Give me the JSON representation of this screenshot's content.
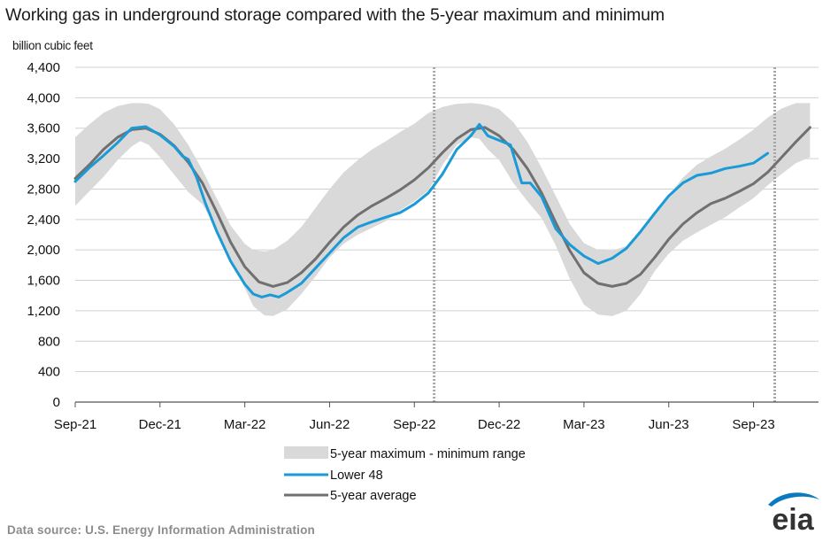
{
  "title": "Working gas in underground  storage compared with the 5-year maximum and minimum",
  "unit_label": "billion cubic feet",
  "source": "Data source:  U.S. Energy Information Administration",
  "logo_text": "eia",
  "colors": {
    "lower48": "#1a9ad6",
    "average": "#707070",
    "range": "#d9d9d9",
    "grid": "#d0d0d0",
    "marker": "#a6a6a6",
    "logo": "#0a7abf"
  },
  "chart_data": {
    "type": "line",
    "title": "Working gas in underground  storage compared with the 5-year maximum and minimum",
    "ylabel": "billion cubic feet",
    "xlabel": "",
    "ylim": [
      0,
      4400
    ],
    "yticks": [
      0,
      400,
      800,
      1200,
      1600,
      2000,
      2400,
      2800,
      3200,
      3600,
      4000,
      4400
    ],
    "ytick_labels": [
      "0",
      "400",
      "800",
      "1,200",
      "1,600",
      "2,000",
      "2,400",
      "2,800",
      "3,200",
      "3,600",
      "4,000",
      "4,400"
    ],
    "x_unit": "months after Sep-21",
    "xlim": [
      0,
      26.3
    ],
    "xticks": [
      0,
      3,
      6,
      9,
      12,
      15,
      18,
      21,
      24
    ],
    "xtick_labels": [
      "Sep-21",
      "Dec-21",
      "Mar-22",
      "Jun-22",
      "Sep-22",
      "Dec-22",
      "Mar-23",
      "Jun-23",
      "Sep-23"
    ],
    "vertical_markers": [
      12.7,
      24.75
    ],
    "grid": true,
    "legend_position": "bottom-center",
    "series": [
      {
        "name": "5-year maximum - minimum range",
        "kind": "band",
        "x": [
          0,
          0.5,
          1,
          1.5,
          2,
          2.3,
          2.6,
          3,
          3.5,
          4,
          4.5,
          5,
          5.5,
          6,
          6.3,
          6.7,
          7,
          7.5,
          8,
          8.5,
          9,
          9.5,
          10,
          10.5,
          11,
          11.5,
          12,
          12.5,
          13,
          13.5,
          14,
          14.3,
          14.6,
          15,
          15.5,
          16,
          16.5,
          17,
          17.5,
          18,
          18.5,
          19,
          19.5,
          20,
          20.5,
          21,
          21.5,
          22,
          22.5,
          23,
          23.5,
          24,
          24.5,
          25,
          25.5,
          26
        ],
        "max": [
          3480,
          3650,
          3800,
          3890,
          3930,
          3930,
          3920,
          3850,
          3650,
          3380,
          3050,
          2680,
          2320,
          2080,
          2000,
          1980,
          2000,
          2120,
          2300,
          2550,
          2800,
          3020,
          3180,
          3320,
          3430,
          3550,
          3660,
          3800,
          3880,
          3920,
          3930,
          3920,
          3900,
          3850,
          3680,
          3420,
          3080,
          2710,
          2340,
          2090,
          2000,
          1990,
          2050,
          2230,
          2480,
          2720,
          2950,
          3120,
          3230,
          3330,
          3450,
          3580,
          3740,
          3860,
          3930,
          3930
        ],
        "min": [
          2580,
          2770,
          2960,
          3180,
          3360,
          3430,
          3380,
          3220,
          2990,
          2760,
          2600,
          2280,
          1880,
          1500,
          1260,
          1140,
          1130,
          1220,
          1420,
          1650,
          1900,
          2080,
          2200,
          2290,
          2380,
          2520,
          2640,
          2780,
          3120,
          3380,
          3480,
          3460,
          3320,
          3180,
          2880,
          2640,
          2420,
          2060,
          1620,
          1280,
          1150,
          1130,
          1200,
          1420,
          1720,
          1950,
          2120,
          2230,
          2330,
          2430,
          2560,
          2680,
          2850,
          3000,
          3140,
          3220
        ]
      },
      {
        "name": "Lower 48",
        "kind": "line",
        "x": [
          0,
          0.5,
          1,
          1.5,
          2,
          2.5,
          3,
          3.5,
          3.8,
          4,
          4.3,
          4.6,
          5,
          5.5,
          6,
          6.3,
          6.6,
          6.9,
          7.2,
          7.5,
          8,
          8.5,
          9,
          9.5,
          10,
          10.5,
          11,
          11.5,
          12,
          12.5,
          13,
          13.5,
          14,
          14.3,
          14.6,
          15,
          15.4,
          15.8,
          16.1,
          16.5,
          17,
          17.5,
          18,
          18.5,
          19,
          19.5,
          20,
          20.5,
          21,
          21.5,
          22,
          22.5,
          23,
          23.5,
          24,
          24.5
        ],
        "values": [
          2900,
          3080,
          3240,
          3410,
          3600,
          3620,
          3510,
          3360,
          3230,
          3190,
          2950,
          2620,
          2250,
          1850,
          1550,
          1420,
          1380,
          1410,
          1380,
          1440,
          1560,
          1760,
          1960,
          2160,
          2300,
          2370,
          2430,
          2490,
          2600,
          2750,
          3000,
          3320,
          3500,
          3650,
          3500,
          3440,
          3380,
          2880,
          2880,
          2700,
          2280,
          2070,
          1920,
          1820,
          1890,
          2020,
          2240,
          2480,
          2710,
          2880,
          2980,
          3010,
          3070,
          3100,
          3140,
          3270
        ]
      },
      {
        "name": "5-year average",
        "kind": "line",
        "x": [
          0,
          0.5,
          1,
          1.5,
          2,
          2.5,
          3,
          3.5,
          4,
          4.5,
          5,
          5.5,
          6,
          6.5,
          7,
          7.5,
          8,
          8.5,
          9,
          9.5,
          10,
          10.5,
          11,
          11.5,
          12,
          12.5,
          13,
          13.5,
          14,
          14.5,
          15,
          15.5,
          16,
          16.5,
          17,
          17.5,
          18,
          18.5,
          19,
          19.5,
          20,
          20.5,
          21,
          21.5,
          22,
          22.5,
          23,
          23.5,
          24,
          24.5,
          25,
          25.5,
          26
        ],
        "values": [
          2940,
          3120,
          3320,
          3480,
          3580,
          3600,
          3520,
          3370,
          3150,
          2880,
          2500,
          2100,
          1780,
          1580,
          1520,
          1570,
          1700,
          1880,
          2100,
          2300,
          2460,
          2580,
          2680,
          2790,
          2920,
          3080,
          3280,
          3460,
          3580,
          3610,
          3500,
          3320,
          3070,
          2750,
          2360,
          1990,
          1700,
          1560,
          1520,
          1560,
          1680,
          1900,
          2140,
          2340,
          2490,
          2610,
          2680,
          2770,
          2870,
          3020,
          3220,
          3420,
          3610
        ]
      }
    ]
  },
  "legend": [
    {
      "label": "5-year maximum - minimum range",
      "swatch": "band"
    },
    {
      "label": "Lower 48",
      "swatch": "lower48"
    },
    {
      "label": "5-year average",
      "swatch": "average"
    }
  ]
}
